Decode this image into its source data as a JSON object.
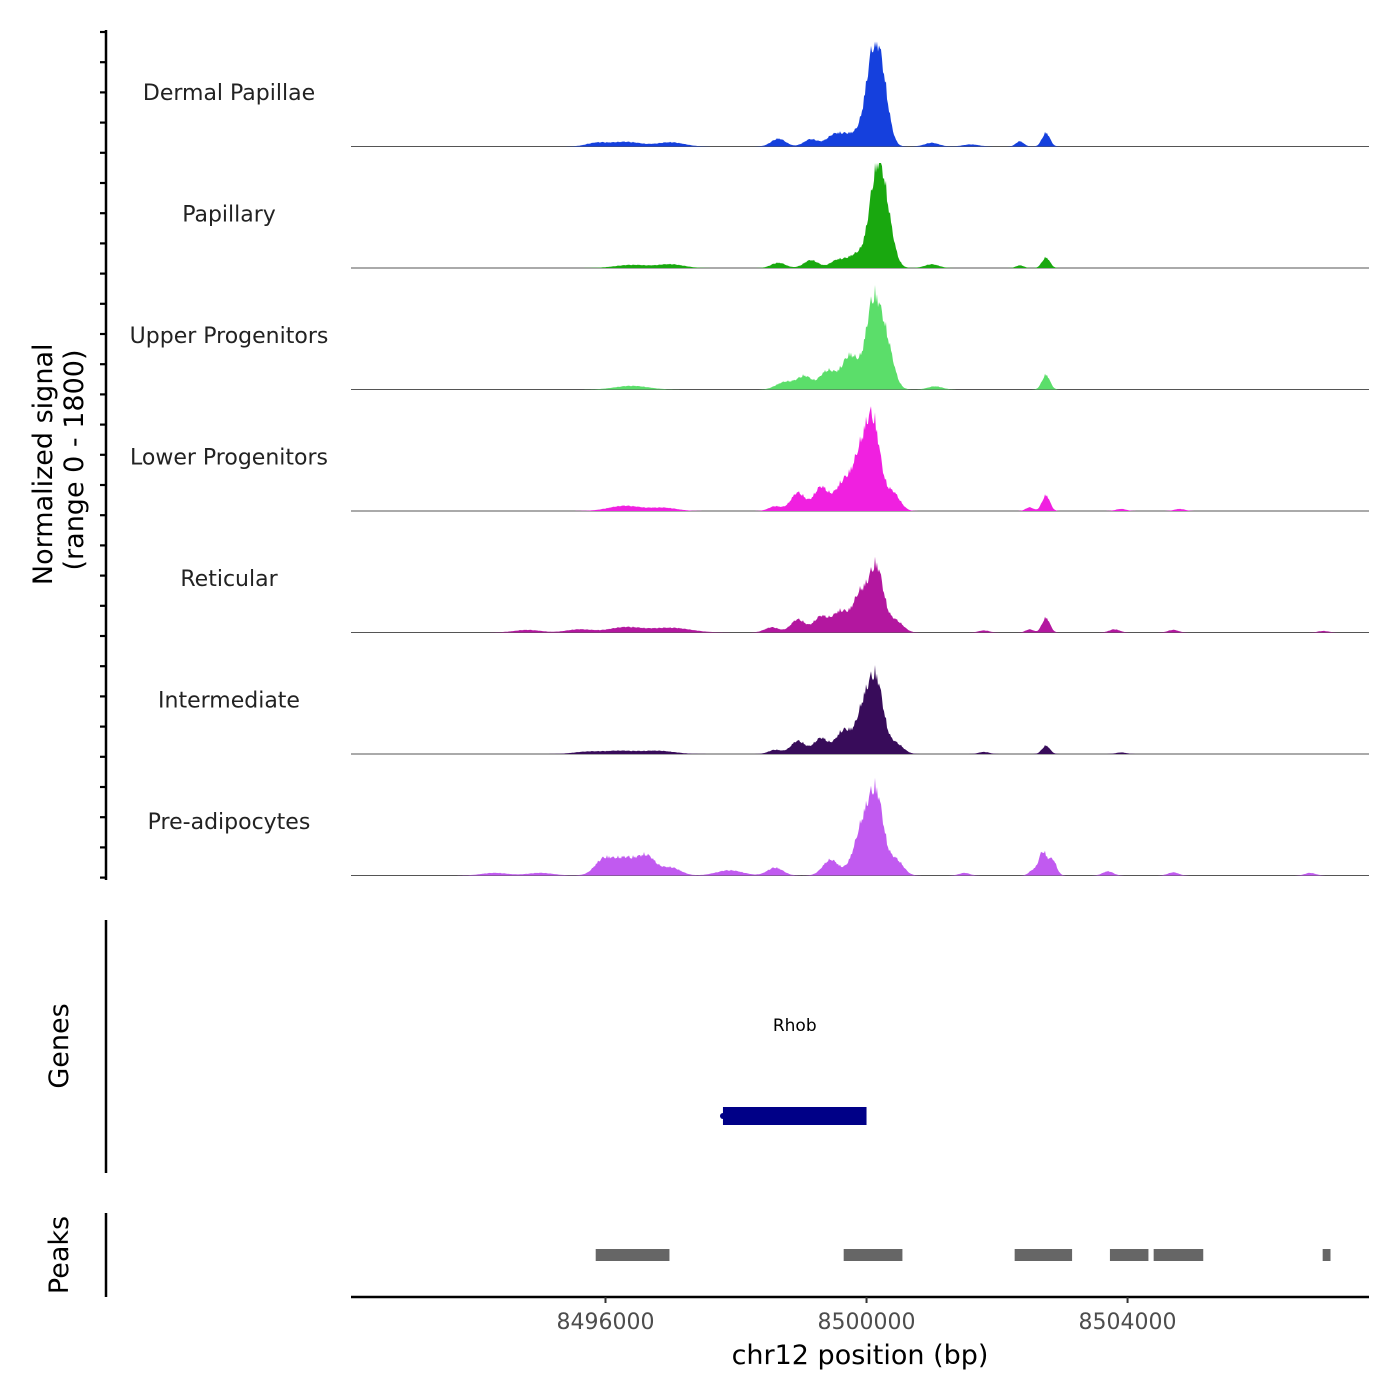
{
  "chart_data": {
    "type": "area",
    "title": "",
    "ylabel": "Normalized signal\n(range 0 - 1800)",
    "ylabel_lines": [
      "Normalized signal",
      "(range 0 - 1800)"
    ],
    "y_range": [
      0,
      1800
    ],
    "xlabel": "chr12 position (bp)",
    "x_range": [
      8492100,
      8507700
    ],
    "x_ticks": [
      8496000,
      8500000,
      8504000
    ],
    "x_tick_labels": [
      "8496000",
      "8500000",
      "8504000"
    ],
    "tracks": [
      {
        "name": "Dermal Papillae",
        "color": "#1540dd",
        "peaks": [
          [
            8500100,
            1620,
            110
          ],
          [
            8500250,
            900,
            100
          ],
          [
            8499850,
            220,
            140
          ],
          [
            8499600,
            180,
            120
          ],
          [
            8498650,
            150,
            110
          ],
          [
            8499150,
            140,
            110
          ],
          [
            8499450,
            120,
            100
          ],
          [
            8497000,
            80,
            200
          ],
          [
            8496300,
            90,
            250
          ],
          [
            8495850,
            60,
            150
          ],
          [
            8502350,
            100,
            60
          ],
          [
            8502750,
            260,
            60
          ],
          [
            8501000,
            70,
            110
          ],
          [
            8501600,
            40,
            120
          ]
        ]
      },
      {
        "name": "Papillary",
        "color": "#19a80f",
        "peaks": [
          [
            8500150,
            1620,
            110
          ],
          [
            8500300,
            850,
            110
          ],
          [
            8499850,
            260,
            140
          ],
          [
            8499550,
            140,
            110
          ],
          [
            8499150,
            150,
            110
          ],
          [
            8498650,
            100,
            110
          ],
          [
            8497000,
            70,
            200
          ],
          [
            8496400,
            60,
            250
          ],
          [
            8502750,
            200,
            60
          ],
          [
            8502350,
            50,
            60
          ],
          [
            8501000,
            70,
            110
          ]
        ]
      },
      {
        "name": "Upper Progenitors",
        "color": "#5bde6a",
        "peaks": [
          [
            8500100,
            1600,
            110
          ],
          [
            8500300,
            850,
            110
          ],
          [
            8499750,
            650,
            130
          ],
          [
            8499400,
            350,
            120
          ],
          [
            8499050,
            250,
            110
          ],
          [
            8498800,
            120,
            110
          ],
          [
            8498650,
            60,
            100
          ],
          [
            8496400,
            70,
            250
          ],
          [
            8502750,
            280,
            60
          ],
          [
            8501050,
            60,
            110
          ]
        ]
      },
      {
        "name": "Lower Progenitors",
        "color": "#f020e0",
        "peaks": [
          [
            8500100,
            1650,
            110
          ],
          [
            8499900,
            900,
            110
          ],
          [
            8499650,
            550,
            130
          ],
          [
            8499300,
            450,
            110
          ],
          [
            8498950,
            350,
            110
          ],
          [
            8500400,
            350,
            110
          ],
          [
            8498600,
            90,
            100
          ],
          [
            8496300,
            100,
            250
          ],
          [
            8496900,
            60,
            200
          ],
          [
            8502750,
            300,
            60
          ],
          [
            8502500,
            70,
            60
          ],
          [
            8503900,
            40,
            80
          ],
          [
            8504800,
            40,
            80
          ]
        ]
      },
      {
        "name": "Reticular",
        "color": "#b3179f",
        "peaks": [
          [
            8500150,
            1250,
            110
          ],
          [
            8499900,
            700,
            110
          ],
          [
            8499600,
            400,
            120
          ],
          [
            8499300,
            300,
            110
          ],
          [
            8498950,
            250,
            110
          ],
          [
            8500450,
            220,
            110
          ],
          [
            8498550,
            100,
            110
          ],
          [
            8497000,
            90,
            300
          ],
          [
            8496300,
            100,
            250
          ],
          [
            8495600,
            60,
            200
          ],
          [
            8494800,
            50,
            200
          ],
          [
            8502750,
            280,
            60
          ],
          [
            8502500,
            60,
            60
          ],
          [
            8503800,
            60,
            80
          ],
          [
            8504700,
            50,
            80
          ],
          [
            8501800,
            40,
            80
          ],
          [
            8507000,
            30,
            80
          ]
        ]
      },
      {
        "name": "Intermediate",
        "color": "#380c5a",
        "peaks": [
          [
            8500150,
            1350,
            110
          ],
          [
            8499950,
            800,
            110
          ],
          [
            8499650,
            450,
            120
          ],
          [
            8499300,
            300,
            110
          ],
          [
            8498950,
            250,
            110
          ],
          [
            8500450,
            200,
            110
          ],
          [
            8498600,
            80,
            100
          ],
          [
            8496800,
            60,
            250
          ],
          [
            8496200,
            60,
            250
          ],
          [
            8495700,
            40,
            200
          ],
          [
            8502750,
            160,
            60
          ],
          [
            8501800,
            40,
            80
          ],
          [
            8503900,
            30,
            80
          ]
        ]
      },
      {
        "name": "Pre-adipocytes",
        "color": "#c15af0",
        "peaks": [
          [
            8500150,
            1500,
            110
          ],
          [
            8499950,
            800,
            110
          ],
          [
            8500450,
            300,
            110
          ],
          [
            8499450,
            300,
            120
          ],
          [
            8499800,
            200,
            110
          ],
          [
            8498600,
            150,
            120
          ],
          [
            8496300,
            350,
            250
          ],
          [
            8495950,
            200,
            120
          ],
          [
            8496650,
            250,
            120
          ],
          [
            8497000,
            150,
            150
          ],
          [
            8497900,
            100,
            200
          ],
          [
            8495000,
            50,
            200
          ],
          [
            8494300,
            50,
            200
          ],
          [
            8502700,
            450,
            60
          ],
          [
            8502850,
            300,
            60
          ],
          [
            8502550,
            100,
            60
          ],
          [
            8503700,
            80,
            80
          ],
          [
            8504700,
            60,
            80
          ],
          [
            8506800,
            50,
            80
          ],
          [
            8501500,
            50,
            80
          ]
        ]
      }
    ],
    "genes": {
      "label": "Genes",
      "items": [
        {
          "name": "Rhob",
          "start": 8497800,
          "end": 8500000,
          "strand": "+",
          "color": "#000087"
        }
      ]
    },
    "peaks_track": {
      "label": "Peaks",
      "color": "#666666",
      "regions": [
        [
          8495850,
          8496980
        ],
        [
          8499650,
          8500550
        ],
        [
          8502270,
          8503150
        ],
        [
          8503730,
          8504320
        ],
        [
          8504400,
          8505160
        ],
        [
          8506990,
          8507110
        ]
      ]
    }
  }
}
